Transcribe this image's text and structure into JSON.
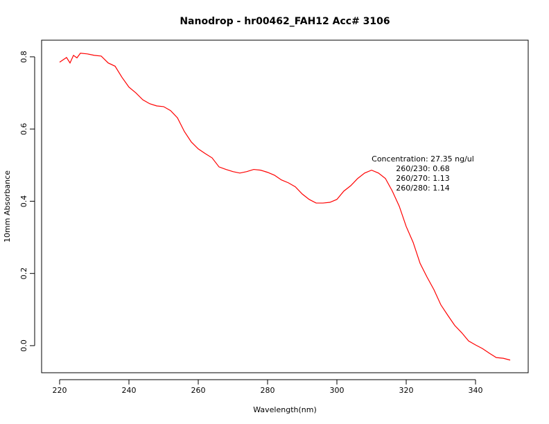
{
  "chart_data": {
    "type": "line",
    "title": "Nanodrop - hr00462_FAH12 Acc# 3106",
    "x_label": "Wavelength(nm)",
    "y_label": "10mm Absorbance",
    "x": [
      220,
      222,
      223,
      224,
      225,
      226,
      228,
      230,
      232,
      234,
      236,
      238,
      240,
      242,
      244,
      246,
      248,
      250,
      252,
      254,
      256,
      258,
      260,
      262,
      264,
      266,
      268,
      270,
      272,
      274,
      276,
      278,
      280,
      282,
      284,
      286,
      288,
      290,
      292,
      294,
      296,
      298,
      300,
      302,
      304,
      306,
      308,
      310,
      312,
      314,
      316,
      318,
      320,
      322,
      324,
      326,
      328,
      330,
      332,
      334,
      336,
      338,
      340,
      342,
      344,
      346,
      348,
      350
    ],
    "values": [
      0.785,
      0.798,
      0.783,
      0.804,
      0.797,
      0.81,
      0.808,
      0.804,
      0.802,
      0.783,
      0.774,
      0.743,
      0.716,
      0.7,
      0.681,
      0.67,
      0.664,
      0.662,
      0.651,
      0.631,
      0.593,
      0.564,
      0.545,
      0.532,
      0.52,
      0.495,
      0.488,
      0.482,
      0.478,
      0.482,
      0.488,
      0.486,
      0.48,
      0.472,
      0.459,
      0.451,
      0.44,
      0.42,
      0.405,
      0.395,
      0.395,
      0.397,
      0.405,
      0.428,
      0.443,
      0.463,
      0.478,
      0.486,
      0.478,
      0.463,
      0.428,
      0.386,
      0.33,
      0.286,
      0.228,
      0.19,
      0.155,
      0.113,
      0.084,
      0.056,
      0.036,
      0.013,
      0.002,
      -0.008,
      -0.021,
      -0.033,
      -0.035,
      -0.04
    ],
    "color": "#ff0000",
    "xlim": [
      214.8,
      355.2
    ],
    "ylim": [
      -0.075,
      0.846
    ],
    "xticks": [
      220,
      240,
      260,
      280,
      300,
      320,
      340
    ],
    "yticks": [
      {
        "value": 0,
        "label": "0.0"
      },
      0.2,
      0.4,
      0.6,
      0.8
    ],
    "annotations": [
      "Concentration: 27.35 ng/ul",
      "260/230: 0.68",
      "260/270: 1.13",
      "260/280: 1.14"
    ]
  }
}
